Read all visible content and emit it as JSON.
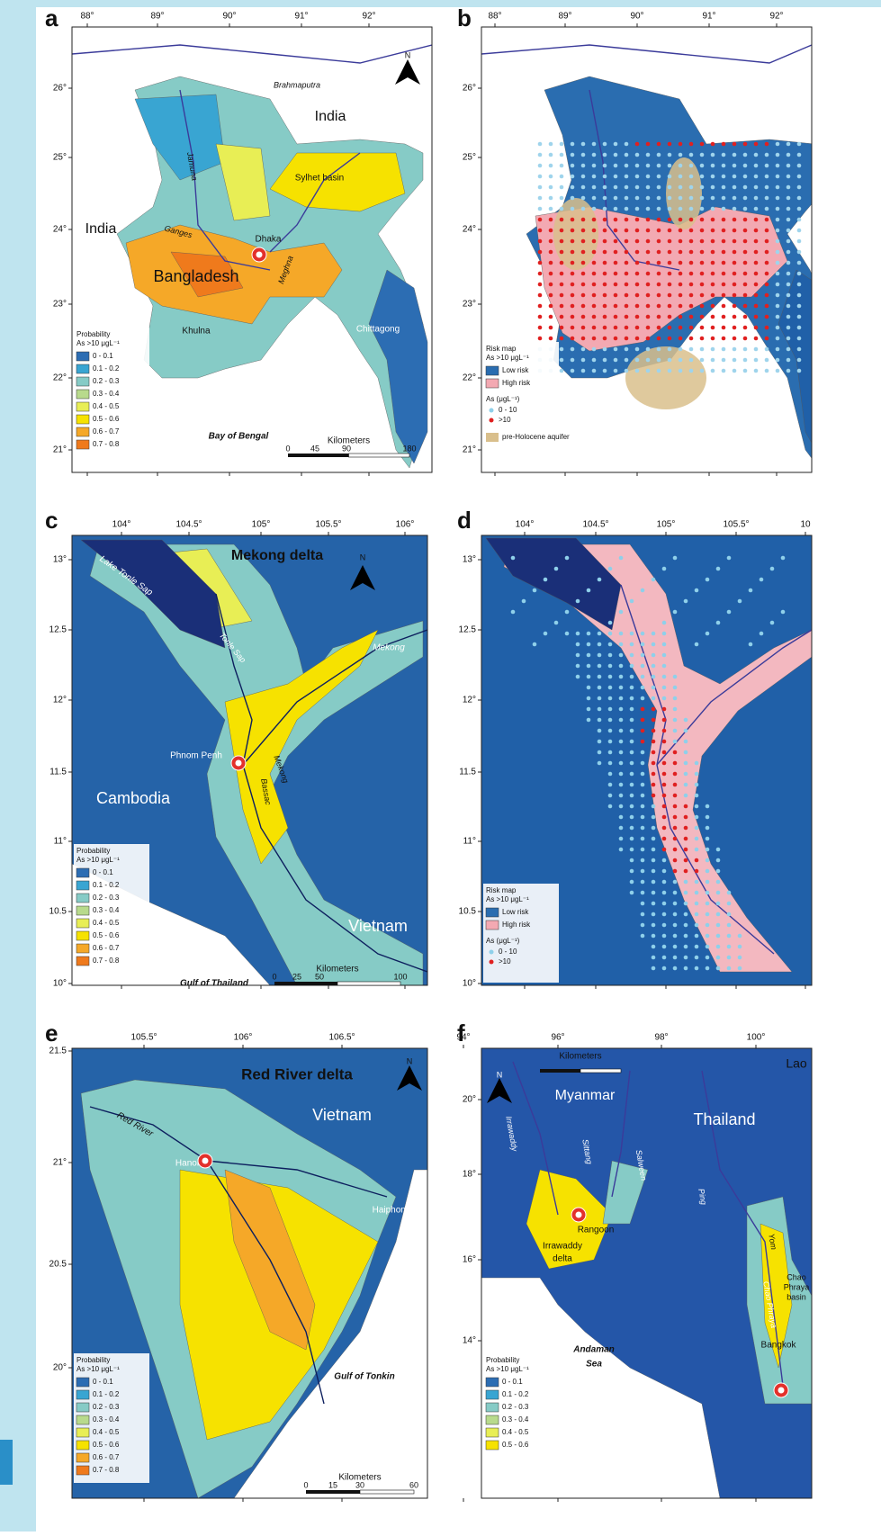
{
  "panels": [
    {
      "letter": "a",
      "lon_ticks": [
        "88°",
        "89°",
        "90°",
        "91°",
        "92°"
      ],
      "lat_ticks": [
        "26°",
        "25°",
        "24°",
        "23°",
        "22°",
        "21°"
      ],
      "places": [
        "Brahmaputra",
        "India",
        "Jamuna",
        "Sylhet basin",
        "India",
        "Ganges",
        "Dhaka",
        "Meghna",
        "Bangladesh",
        "Khulna",
        "Chittagong",
        "Bay of Bengal",
        "N"
      ],
      "legend_title": [
        "Probability",
        "As >10 μgL⁻¹"
      ],
      "legend_items": [
        "0 - 0.1",
        "0.1 - 0.2",
        "0.2 - 0.3",
        "0.3 - 0.4",
        "0.4 - 0.5",
        "0.5 - 0.6",
        "0.6 - 0.7",
        "0.7 - 0.8"
      ],
      "scale_title": "Kilometers",
      "scale_ticks": [
        "0",
        "45",
        "90",
        "180"
      ]
    },
    {
      "letter": "b",
      "lon_ticks": [
        "88°",
        "89°",
        "90°",
        "91°",
        "92°"
      ],
      "lat_ticks": [
        "26°",
        "25°",
        "24°",
        "23°",
        "22°",
        "21°"
      ],
      "legend_title": [
        "Risk map",
        "As >10 μgL⁻¹"
      ],
      "legend_items": [
        "Low risk",
        "High risk"
      ],
      "legend2_title": "As (μgL⁻¹)",
      "legend2_items": [
        "0 - 10",
        ">10"
      ],
      "legend3": "pre-Holocene aquifer"
    },
    {
      "letter": "c",
      "lon_ticks": [
        "104°",
        "104.5°",
        "105°",
        "105.5°",
        "106°"
      ],
      "lat_ticks": [
        "13°",
        "12.5",
        "12°",
        "11.5",
        "11°",
        "10.5",
        "10°"
      ],
      "places": [
        "Lake Tonle Sap",
        "Mekong delta",
        "N",
        "Tonle Sap",
        "Mekong",
        "Phnom Penh",
        "Cambodia",
        "Mekong",
        "Bassac",
        "Vietnam",
        "Gulf of Thailand"
      ],
      "legend_title": [
        "Probability",
        "As >10 μgL⁻¹"
      ],
      "legend_items": [
        "0 - 0.1",
        "0.1 - 0.2",
        "0.2 - 0.3",
        "0.3 - 0.4",
        "0.4 - 0.5",
        "0.5 - 0.6",
        "0.6 - 0.7",
        "0.7 - 0.8"
      ],
      "scale_title": "Kilometers",
      "scale_ticks": [
        "0",
        "25",
        "50",
        "100"
      ]
    },
    {
      "letter": "d",
      "lon_ticks": [
        "104°",
        "104.5°",
        "105°",
        "105.5°",
        "10"
      ],
      "lat_ticks": [
        "13°",
        "12.5",
        "12°",
        "11.5",
        "11°",
        "10.5",
        "10°"
      ],
      "legend_title": [
        "Risk map",
        "As >10 μgL⁻¹"
      ],
      "legend_items": [
        "Low risk",
        "High risk"
      ],
      "legend2_title": "As (μgL⁻¹)",
      "legend2_items": [
        "0 - 10",
        ">10"
      ]
    },
    {
      "letter": "e",
      "lon_ticks": [
        "105.5°",
        "106°",
        "106.5°"
      ],
      "lat_ticks": [
        "21.5",
        "21°",
        "20.5",
        "20°"
      ],
      "places": [
        "Red River delta",
        "N",
        "Vietnam",
        "Red River",
        "Hanoi",
        "Haiphong",
        "Gulf of Tonkin"
      ],
      "legend_title": [
        "Probability",
        "As >10 μgL⁻¹"
      ],
      "legend_items": [
        "0 - 0.1",
        "0.1 - 0.2",
        "0.2 - 0.3",
        "0.3 - 0.4",
        "0.4 - 0.5",
        "0.5 - 0.6",
        "0.6 - 0.7",
        "0.7 - 0.8"
      ],
      "scale_title": "Kilometers",
      "scale_ticks": [
        "0",
        "15",
        "30",
        "60"
      ]
    },
    {
      "letter": "f",
      "lon_ticks": [
        "94°",
        "96°",
        "98°",
        "100°"
      ],
      "lat_ticks": [
        "20°",
        "18°",
        "16°",
        "14°"
      ],
      "places": [
        "N",
        "Myanmar",
        "Irrawaddy",
        "Sittang",
        "Salween",
        "Thailand",
        "Lao",
        "Ping",
        "Rangoon",
        "Irrawaddy",
        "delta",
        "Yom",
        "Chao",
        "Phraya",
        "basin",
        "Chao Phraya",
        "Bangkok",
        "Andaman",
        "Sea"
      ],
      "legend_title": [
        "Probability",
        "As >10 μgL⁻¹"
      ],
      "legend_items": [
        "0 - 0.1",
        "0.1 - 0.2",
        "0.2 - 0.3",
        "0.3 - 0.4",
        "0.4 - 0.5",
        "0.5 - 0.6"
      ],
      "scale_title": "Kilometers"
    }
  ]
}
